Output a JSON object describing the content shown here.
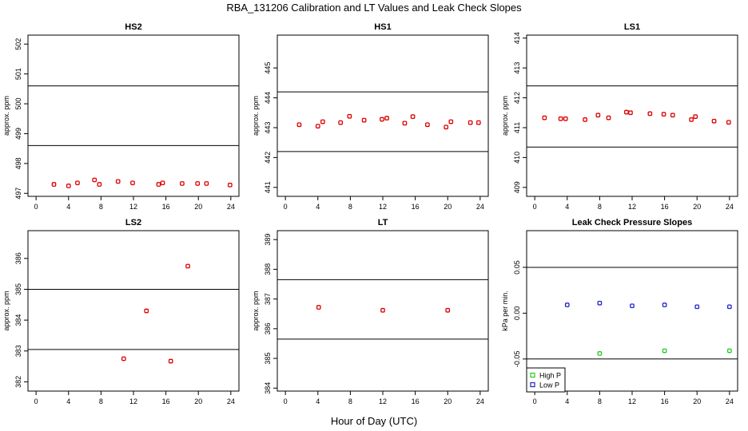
{
  "figure_title": "RBA_131206  Calibration and LT Values and Leak Check Slopes",
  "xlabel": "Hour of Day (UTC)",
  "chart_data": [
    {
      "id": "hs2",
      "type": "scatter",
      "title": "HS2",
      "ylabel": "approx. ppm",
      "xlim": [
        -1,
        25
      ],
      "ylim": [
        496.9,
        502.3
      ],
      "xticks": [
        0,
        4,
        8,
        12,
        16,
        20,
        24
      ],
      "yticks": [
        497,
        498,
        499,
        500,
        501,
        502
      ],
      "hlines": [
        500.6,
        498.6
      ],
      "series": [
        {
          "name": "HS2",
          "color": "#dd0000",
          "x": [
            2.2,
            4.0,
            5.1,
            7.2,
            7.8,
            10.1,
            11.9,
            15.1,
            15.6,
            18.0,
            19.9,
            21.0,
            23.9
          ],
          "y": [
            497.3,
            497.25,
            497.35,
            497.45,
            497.3,
            497.4,
            497.35,
            497.3,
            497.35,
            497.33,
            497.33,
            497.33,
            497.28
          ]
        }
      ]
    },
    {
      "id": "hs1",
      "type": "scatter",
      "title": "HS1",
      "ylabel": "approx. ppm",
      "xlim": [
        -1,
        25
      ],
      "ylim": [
        440.7,
        446.1
      ],
      "xticks": [
        0,
        4,
        8,
        12,
        16,
        20,
        24
      ],
      "yticks": [
        441,
        442,
        443,
        444,
        445
      ],
      "hlines": [
        444.2,
        442.2
      ],
      "series": [
        {
          "name": "HS1",
          "color": "#dd0000",
          "x": [
            1.7,
            4.0,
            4.6,
            6.8,
            7.9,
            9.7,
            11.9,
            12.5,
            14.7,
            15.7,
            17.5,
            19.8,
            20.4,
            22.8,
            23.8
          ],
          "y": [
            443.1,
            443.05,
            443.2,
            443.17,
            443.38,
            443.25,
            443.28,
            443.32,
            443.15,
            443.37,
            443.1,
            443.02,
            443.2,
            443.17,
            443.17
          ]
        }
      ]
    },
    {
      "id": "ls1",
      "type": "scatter",
      "title": "LS1",
      "ylabel": "approx. ppm",
      "xlim": [
        -1,
        25
      ],
      "ylim": [
        408.7,
        414.1
      ],
      "xticks": [
        0,
        4,
        8,
        12,
        16,
        20,
        24
      ],
      "yticks": [
        409,
        410,
        411,
        412,
        413,
        414
      ],
      "hlines": [
        412.4,
        410.35
      ],
      "series": [
        {
          "name": "LS1",
          "color": "#dd0000",
          "x": [
            1.2,
            3.2,
            3.8,
            6.2,
            7.8,
            9.1,
            11.3,
            11.8,
            14.2,
            15.9,
            17.0,
            19.3,
            19.8,
            22.1,
            23.9
          ],
          "y": [
            411.33,
            411.3,
            411.3,
            411.27,
            411.42,
            411.33,
            411.52,
            411.5,
            411.47,
            411.45,
            411.42,
            411.27,
            411.37,
            411.22,
            411.18
          ]
        }
      ]
    },
    {
      "id": "ls2",
      "type": "scatter",
      "title": "LS2",
      "ylabel": "approx. ppm",
      "xlim": [
        -1,
        25
      ],
      "ylim": [
        381.7,
        386.9
      ],
      "xticks": [
        0,
        4,
        8,
        12,
        16,
        20,
        24
      ],
      "yticks": [
        382,
        383,
        384,
        385,
        386
      ],
      "hlines": [
        385.0,
        383.05
      ],
      "series": [
        {
          "name": "LS2",
          "color": "#dd0000",
          "x": [
            10.8,
            13.6,
            16.6,
            18.7
          ],
          "y": [
            382.75,
            384.3,
            382.67,
            385.75
          ]
        }
      ]
    },
    {
      "id": "lt",
      "type": "scatter",
      "title": "LT",
      "ylabel": "approx. ppm",
      "xlim": [
        -1,
        25
      ],
      "ylim": [
        383.9,
        389.3
      ],
      "xticks": [
        0,
        4,
        8,
        12,
        16,
        20,
        24
      ],
      "yticks": [
        384,
        385,
        386,
        387,
        388,
        389
      ],
      "hlines": [
        387.65,
        385.65
      ],
      "series": [
        {
          "name": "LT",
          "color": "#dd0000",
          "x": [
            4.1,
            12.0,
            20.0
          ],
          "y": [
            386.72,
            386.62,
            386.62
          ]
        }
      ]
    },
    {
      "id": "leak",
      "type": "scatter",
      "title": "Leak Check Pressure Slopes",
      "ylabel": "kPa per min.",
      "xlim": [
        -1,
        25
      ],
      "ylim": [
        -0.085,
        0.09
      ],
      "xticks": [
        0,
        4,
        8,
        12,
        16,
        20,
        24
      ],
      "yticks": [
        -0.05,
        0.0,
        0.05
      ],
      "ytick_labels": [
        "-0.05",
        "0.00",
        "0.05"
      ],
      "hlines": [
        0.05,
        -0.05
      ],
      "legend": {
        "position": "bottom-left",
        "entries": [
          "High P",
          "Low P"
        ]
      },
      "series": [
        {
          "name": "High P",
          "color": "#22cc22",
          "x": [
            8.0,
            16.0,
            24.0
          ],
          "y": [
            -0.044,
            -0.041,
            -0.041
          ]
        },
        {
          "name": "Low P",
          "color": "#2222cc",
          "x": [
            4.0,
            8.0,
            12.0,
            16.0,
            20.0,
            24.0
          ],
          "y": [
            0.009,
            0.011,
            0.008,
            0.009,
            0.007,
            0.007
          ]
        }
      ]
    }
  ]
}
